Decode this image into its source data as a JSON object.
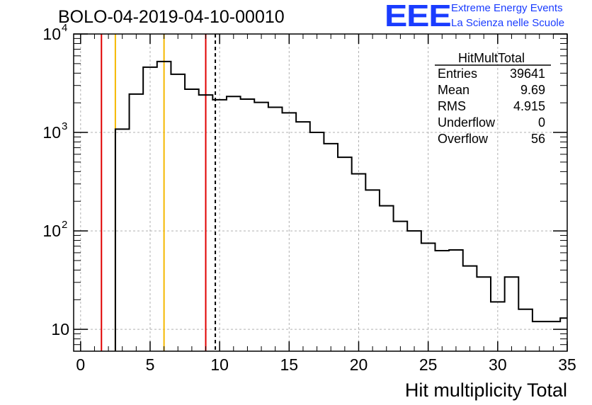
{
  "title": "BOLO-04-2019-04-10-00010",
  "logo": {
    "mark": "EEE",
    "line1": "Extreme Energy Events",
    "line2": "La Scienza nelle Scuole",
    "color": "#1a3cff"
  },
  "stats": {
    "name": "HitMultTotal",
    "rows": [
      {
        "key": "Entries",
        "value": "39641"
      },
      {
        "key": "Mean",
        "value": "9.69"
      },
      {
        "key": "RMS",
        "value": "4.915"
      },
      {
        "key": "Underflow",
        "value": "0"
      },
      {
        "key": "Overflow",
        "value": "56"
      }
    ]
  },
  "chart_data": {
    "type": "histogram",
    "title": "BOLO-04-2019-04-10-00010",
    "xlabel": "Hit multiplicity Total",
    "ylabel": "",
    "xlim": [
      -0.5,
      35
    ],
    "ylim": [
      6,
      10000
    ],
    "yscale": "log",
    "grid": true,
    "xticks": [
      0,
      5,
      10,
      15,
      20,
      25,
      30,
      35
    ],
    "yticks": [
      {
        "value": 10,
        "base": "10",
        "exp": ""
      },
      {
        "value": 100,
        "base": "10",
        "exp": "2"
      },
      {
        "value": 1000,
        "base": "10",
        "exp": "3"
      },
      {
        "value": 10000,
        "base": "10",
        "exp": "4"
      }
    ],
    "bin_edges": [
      2.5,
      3.5,
      4.5,
      5.5,
      6.5,
      7.5,
      8.5,
      9.5,
      10.5,
      11.5,
      12.5,
      13.5,
      14.5,
      15.5,
      16.5,
      17.5,
      18.5,
      19.5,
      20.5,
      21.5,
      22.5,
      23.5,
      24.5,
      25.5,
      26.5,
      27.5,
      28.5,
      29.5,
      30.5,
      31.5,
      32.5,
      33.5,
      34.5,
      35.5
    ],
    "counts": [
      1080,
      2450,
      4600,
      5250,
      3900,
      2750,
      2400,
      2150,
      2320,
      2180,
      2020,
      1800,
      1580,
      1280,
      1000,
      770,
      560,
      380,
      260,
      180,
      125,
      100,
      75,
      63,
      64,
      44,
      34,
      19,
      34,
      16,
      12,
      12,
      13
    ],
    "markers": [
      {
        "x": 1.5,
        "color": "#e00000",
        "style": "solid"
      },
      {
        "x": 2.5,
        "color": "#f5b800",
        "style": "solid"
      },
      {
        "x": 6.0,
        "color": "#f5b800",
        "style": "solid"
      },
      {
        "x": 9.0,
        "color": "#e00000",
        "style": "solid"
      },
      {
        "x": 9.69,
        "color": "#000000",
        "style": "dashed"
      }
    ]
  }
}
